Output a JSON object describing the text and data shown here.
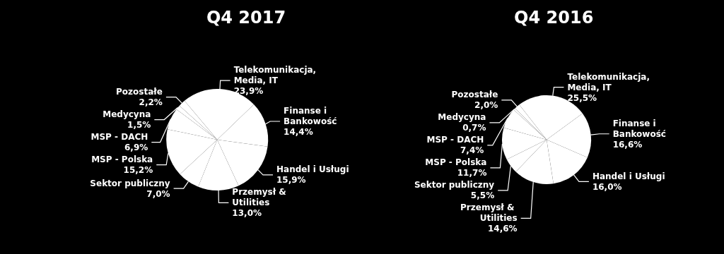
{
  "chart_data": [
    {
      "type": "pie",
      "title": "Q4 2017",
      "categories": [
        "Telekomunikacja, Media, IT",
        "Finanse i Bankowość",
        "Handel i Usługi",
        "Przemysł & Utilities",
        "Sektor publiczny",
        "MSP - Polska",
        "MSP - DACH",
        "Medycyna",
        "Pozostałe"
      ],
      "values": [
        23.9,
        14.4,
        15.9,
        13.0,
        7.0,
        15.2,
        6.9,
        1.5,
        2.2
      ],
      "value_labels": [
        "23,9%",
        "14,4%",
        "15,9%",
        "13,0%",
        "7,0%",
        "15,2%",
        "6,9%",
        "1,5%",
        "2,2%"
      ],
      "colors": [
        "#ffffff",
        "#ffffff",
        "#ffffff",
        "#ffffff",
        "#ffffff",
        "#ffffff",
        "#ffffff",
        "#ffffff",
        "#ffffff"
      ],
      "legend": false
    },
    {
      "type": "pie",
      "title": "Q4 2016",
      "categories": [
        "Telekomunikacja, Media, IT",
        "Finanse i Bankowość",
        "Handel i Usługi",
        "Przemysł & Utilities",
        "Sektor publiczny",
        "MSP - Polska",
        "MSP - DACH",
        "Medycyna",
        "Pozostałe"
      ],
      "values": [
        25.5,
        16.6,
        16.0,
        14.6,
        5.5,
        11.7,
        7.4,
        0.7,
        2.0
      ],
      "value_labels": [
        "25,5%",
        "16,6%",
        "16,0%",
        "14,6%",
        "5,5%",
        "11,7%",
        "7,4%",
        "0,7%",
        "2,0%"
      ],
      "colors": [
        "#ffffff",
        "#ffffff",
        "#ffffff",
        "#ffffff",
        "#ffffff",
        "#ffffff",
        "#ffffff",
        "#ffffff",
        "#ffffff"
      ],
      "legend": false
    }
  ]
}
